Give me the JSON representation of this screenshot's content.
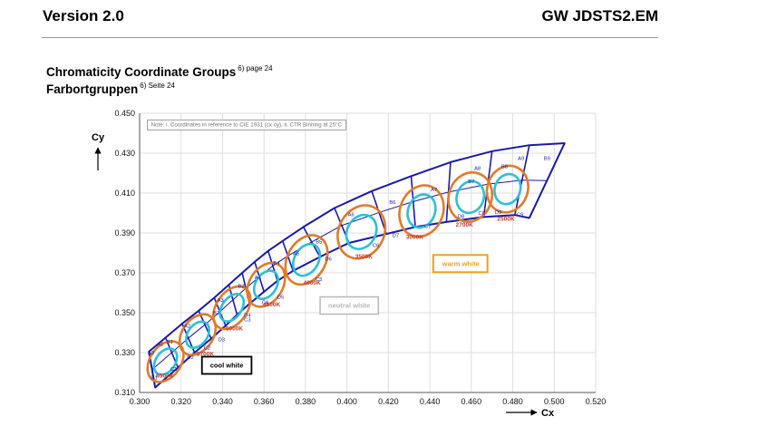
{
  "header": {
    "version": "Version 2.0",
    "doc_id": "GW JDSTS2.EM"
  },
  "section": {
    "title_en": "Chromaticity Coordinate Groups",
    "title_en_ref": "6) page 24",
    "title_de": "Farbortgruppen",
    "title_de_ref": "6) Seite 24"
  },
  "colors": {
    "grid_outline": "#1a1aa8",
    "ellipse_outer": "#e07b2a",
    "ellipse_inner": "#2cc0d6",
    "cct_label": "#c0392b",
    "warm_box": "#f0a020",
    "neutral_box": "#b8b8b8",
    "cool_box": "#000000"
  },
  "chart_data": {
    "type": "scatter",
    "note": "Note: i. Coordinates in reference to CIE 1931 (cx cy), ii. CTR Binning at 25°C",
    "xlabel": "Cx",
    "ylabel": "Cy",
    "xlim": [
      0.3,
      0.52
    ],
    "ylim": [
      0.31,
      0.45
    ],
    "xticks": [
      "0.300",
      "0.320",
      "0.340",
      "0.360",
      "0.380",
      "0.400",
      "0.420",
      "0.440",
      "0.460",
      "0.480",
      "0.500",
      "0.520"
    ],
    "yticks": [
      "0.310",
      "0.330",
      "0.350",
      "0.370",
      "0.390",
      "0.410",
      "0.430",
      "0.450"
    ],
    "grid": true,
    "bin_boundaries": [
      {
        "top": [
          0.3045,
          0.3305
        ],
        "bottom": [
          0.3075,
          0.3125
        ]
      },
      {
        "top": [
          0.3125,
          0.3375
        ],
        "bottom": [
          0.3185,
          0.3225
        ]
      },
      {
        "top": [
          0.3205,
          0.3445
        ],
        "bottom": [
          0.3265,
          0.33
        ]
      },
      {
        "top": [
          0.3285,
          0.351
        ],
        "bottom": [
          0.3345,
          0.337
        ]
      },
      {
        "top": [
          0.336,
          0.3575
        ],
        "bottom": [
          0.3415,
          0.3435
        ]
      },
      {
        "top": [
          0.343,
          0.364
        ],
        "bottom": [
          0.347,
          0.349
        ]
      },
      {
        "top": [
          0.3495,
          0.37
        ],
        "bottom": [
          0.353,
          0.3545
        ]
      },
      {
        "top": [
          0.3555,
          0.3755
        ],
        "bottom": [
          0.36,
          0.3605
        ]
      },
      {
        "top": [
          0.362,
          0.381
        ],
        "bottom": [
          0.3665,
          0.366
        ]
      },
      {
        "top": [
          0.369,
          0.386
        ],
        "bottom": [
          0.374,
          0.371
        ]
      },
      {
        "top": [
          0.379,
          0.393
        ],
        "bottom": [
          0.387,
          0.378
        ]
      },
      {
        "top": [
          0.394,
          0.4025
        ],
        "bottom": [
          0.401,
          0.385
        ]
      },
      {
        "top": [
          0.412,
          0.411
        ],
        "bottom": [
          0.419,
          0.3895
        ]
      },
      {
        "top": [
          0.431,
          0.4185
        ],
        "bottom": [
          0.433,
          0.393
        ]
      },
      {
        "top": [
          0.45,
          0.4255
        ],
        "bottom": [
          0.448,
          0.3955
        ]
      },
      {
        "top": [
          0.47,
          0.431
        ],
        "bottom": [
          0.466,
          0.398
        ]
      },
      {
        "top": [
          0.488,
          0.434
        ],
        "bottom": [
          0.481,
          0.399
        ]
      },
      {
        "top": [
          0.505,
          0.435
        ],
        "bottom": [
          0.488,
          0.3975
        ]
      }
    ],
    "series": [
      {
        "name": "CCT groups",
        "points": [
          {
            "cct": "6500K",
            "x": 0.3125,
            "y": 0.3255,
            "rx": 0.0065,
            "ry": 0.0085,
            "rot": -55,
            "label_x": 0.308,
            "label_y": 0.3175
          },
          {
            "cct": "5700K",
            "x": 0.328,
            "y": 0.339,
            "rx": 0.0065,
            "ry": 0.0085,
            "rot": -55,
            "label_x": 0.3275,
            "label_y": 0.3283
          },
          {
            "cct": "5000K",
            "x": 0.3445,
            "y": 0.3525,
            "rx": 0.0065,
            "ry": 0.009,
            "rot": -55,
            "label_x": 0.3415,
            "label_y": 0.3412
          },
          {
            "cct": "4500K",
            "x": 0.361,
            "y": 0.364,
            "rx": 0.007,
            "ry": 0.009,
            "rot": -58,
            "label_x": 0.3595,
            "label_y": 0.3532
          },
          {
            "cct": "4000K",
            "x": 0.3805,
            "y": 0.3765,
            "rx": 0.008,
            "ry": 0.01,
            "rot": -60,
            "label_x": 0.379,
            "label_y": 0.3642
          },
          {
            "cct": "3500K",
            "x": 0.407,
            "y": 0.3905,
            "rx": 0.0095,
            "ry": 0.0105,
            "rot": -62,
            "label_x": 0.404,
            "label_y": 0.3772
          },
          {
            "cct": "3000K",
            "x": 0.436,
            "y": 0.401,
            "rx": 0.009,
            "ry": 0.01,
            "rot": -68,
            "label_x": 0.4285,
            "label_y": 0.387
          },
          {
            "cct": "2700K",
            "x": 0.4595,
            "y": 0.408,
            "rx": 0.009,
            "ry": 0.0095,
            "rot": -70,
            "label_x": 0.4525,
            "label_y": 0.3932
          },
          {
            "cct": "2500K",
            "x": 0.4775,
            "y": 0.412,
            "rx": 0.0085,
            "ry": 0.009,
            "rot": -70,
            "label_x": 0.4725,
            "label_y": 0.3962
          }
        ]
      }
    ],
    "annotations": [
      {
        "text": "warm white",
        "x": 0.446,
        "y": 0.3735
      },
      {
        "text": "neutral white",
        "x": 0.391,
        "y": 0.3525
      },
      {
        "text": "cool white",
        "x": 0.334,
        "y": 0.3225
      }
    ],
    "bin_codes": {
      "top": [
        {
          "text": "A0",
          "x": 0.3055,
          "y": 0.329
        },
        {
          "text": "A1",
          "x": 0.31,
          "y": 0.3335
        },
        {
          "text": "B1",
          "x": 0.3145,
          "y": 0.3345
        },
        {
          "text": "A2",
          "x": 0.323,
          "y": 0.3425
        },
        {
          "text": "B2",
          "x": 0.337,
          "y": 0.3492
        },
        {
          "text": "A3",
          "x": 0.339,
          "y": 0.3555
        },
        {
          "text": "B3",
          "x": 0.349,
          "y": 0.3625
        },
        {
          "text": "A4",
          "x": 0.357,
          "y": 0.3668
        },
        {
          "text": "B4",
          "x": 0.366,
          "y": 0.3742
        },
        {
          "text": "A5",
          "x": 0.3755,
          "y": 0.3788
        },
        {
          "text": "B5",
          "x": 0.3865,
          "y": 0.3848
        },
        {
          "text": "A6",
          "x": 0.402,
          "y": 0.3985
        },
        {
          "text": "B6",
          "x": 0.422,
          "y": 0.4045
        },
        {
          "text": "A7",
          "x": 0.442,
          "y": 0.4108
        },
        {
          "text": "B7",
          "x": 0.46,
          "y": 0.415
        },
        {
          "text": "A8",
          "x": 0.463,
          "y": 0.4215
        },
        {
          "text": "B8",
          "x": 0.476,
          "y": 0.4225
        },
        {
          "text": "A9",
          "x": 0.484,
          "y": 0.4265
        },
        {
          "text": "B9",
          "x": 0.4965,
          "y": 0.4265
        }
      ],
      "bottom": [
        {
          "text": "D1",
          "x": 0.307,
          "y": 0.3167
        },
        {
          "text": "C1",
          "x": 0.3165,
          "y": 0.321
        },
        {
          "text": "D2",
          "x": 0.3245,
          "y": 0.3268
        },
        {
          "text": "C2",
          "x": 0.3325,
          "y": 0.3315
        },
        {
          "text": "D3",
          "x": 0.3395,
          "y": 0.3357
        },
        {
          "text": "C3",
          "x": 0.352,
          "y": 0.3457
        },
        {
          "text": "D4",
          "x": 0.352,
          "y": 0.348
        },
        {
          "text": "C4",
          "x": 0.3605,
          "y": 0.3543
        },
        {
          "text": "D5",
          "x": 0.368,
          "y": 0.357
        },
        {
          "text": "C5",
          "x": 0.3865,
          "y": 0.366
        },
        {
          "text": "D6",
          "x": 0.391,
          "y": 0.3762
        },
        {
          "text": "C6",
          "x": 0.414,
          "y": 0.383
        },
        {
          "text": "D7",
          "x": 0.4235,
          "y": 0.388
        },
        {
          "text": "C7",
          "x": 0.439,
          "y": 0.3925
        },
        {
          "text": "D8",
          "x": 0.455,
          "y": 0.3975
        },
        {
          "text": "C8",
          "x": 0.465,
          "y": 0.399
        },
        {
          "text": "D9",
          "x": 0.473,
          "y": 0.3995
        },
        {
          "text": "C9",
          "x": 0.4835,
          "y": 0.3985
        }
      ]
    }
  }
}
